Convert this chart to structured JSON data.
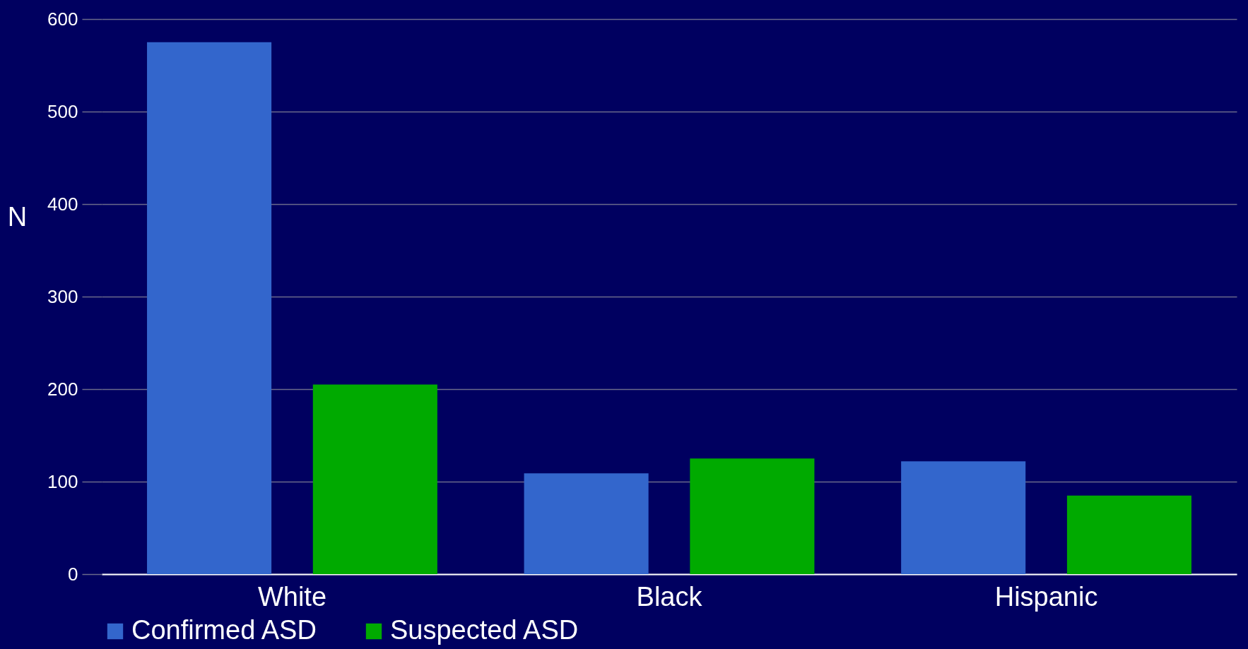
{
  "chart_data": {
    "type": "bar",
    "ylabel": "N",
    "categories": [
      "White",
      "Black",
      "Hispanic"
    ],
    "series": [
      {
        "name": "Confirmed ASD",
        "color": "#3366cc",
        "values": [
          575,
          109,
          122
        ]
      },
      {
        "name": "Suspected ASD",
        "color": "#00aa00",
        "values": [
          205,
          125,
          85
        ]
      }
    ],
    "ylim": [
      0,
      600
    ],
    "yticks": [
      0,
      100,
      200,
      300,
      400,
      500,
      600
    ],
    "grid": "y",
    "legend": "bottom"
  }
}
